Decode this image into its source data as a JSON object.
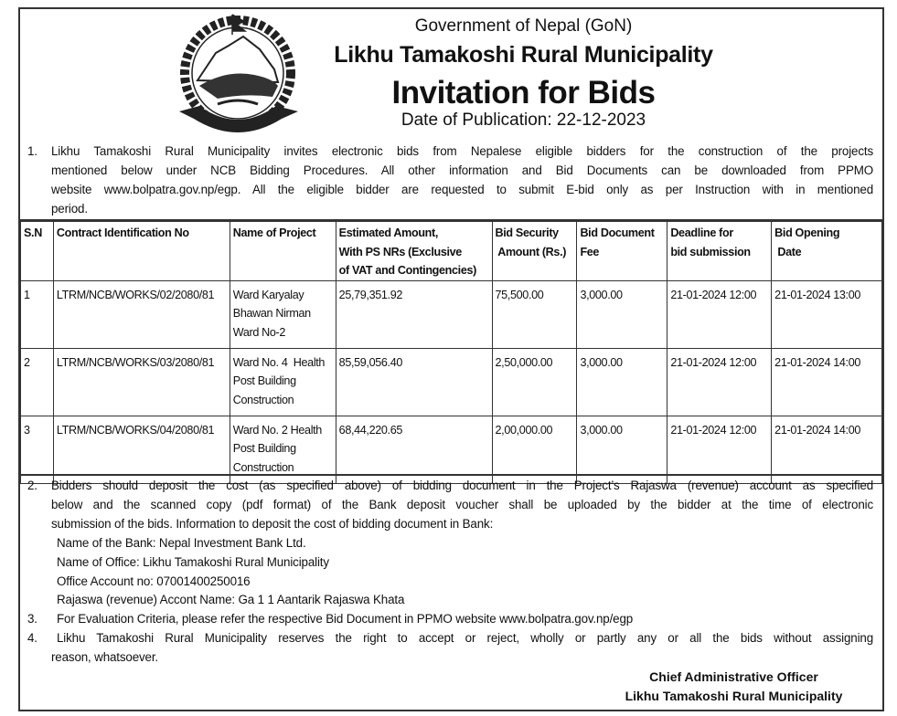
{
  "header": {
    "government": "Government of Nepal (GoN)",
    "municipality": "Likhu Tamakoshi Rural Municipality",
    "title": "Invitation for Bids",
    "publication_date": "Date of Publication: 22-12-2023",
    "emblem_icon": "nepal-government-emblem"
  },
  "section1": {
    "number": "1.",
    "lines": [
      "Likhu Tamakoshi Rural Municipality invites electronic bids from Nepalese eligible bidders for the construction of the projects",
      "mentioned below under NCB Bidding Procedures. All other information and Bid Documents can be downloaded from PPMO",
      "website www.bolpatra.gov.np/egp. All the eligible bidder are requested to submit E-bid only as per Instruction with in mentioned",
      "period."
    ]
  },
  "table": {
    "headers": [
      "S.N",
      "Contract Identification No",
      "Name of Project",
      "Estimated Amount, With PS NRs (Exclusive of VAT and Contingencies)",
      "Bid Security Amount (Rs.)",
      "Bid Document Fee",
      "Deadline for bid submission",
      "Bid Opening Date"
    ],
    "header_lines": [
      [
        "S.N"
      ],
      [
        "Contract Identification No"
      ],
      [
        "Name of Project"
      ],
      [
        "Estimated Amount,",
        "With PS NRs (Exclusive",
        "of VAT and Contingencies)"
      ],
      [
        "Bid Security",
        " Amount (Rs.)"
      ],
      [
        "Bid Document",
        "Fee"
      ],
      [
        "Deadline for",
        "bid submission"
      ],
      [
        "Bid Opening",
        " Date"
      ]
    ],
    "rows": [
      {
        "sn": "1",
        "contract_id": "LTRM/NCB/WORKS/02/2080/81",
        "project": [
          "Ward Karyalay",
          "Bhawan Nirman",
          "Ward No-2"
        ],
        "estimated_amount": "25,79,351.92",
        "bid_security": "75,500.00",
        "document_fee": "3,000.00",
        "deadline": "21-01-2024 12:00",
        "opening": "21-01-2024 13:00"
      },
      {
        "sn": "2",
        "contract_id": "LTRM/NCB/WORKS/03/2080/81",
        "project": [
          "Ward No. 4  Health",
          "Post Building",
          "Construction"
        ],
        "estimated_amount": "85,59,056.40",
        "bid_security": "2,50,000.00",
        "document_fee": "3,000.00",
        "deadline": "21-01-2024 12:00",
        "opening": "21-01-2024 14:00"
      },
      {
        "sn": "3",
        "contract_id": "LTRM/NCB/WORKS/04/2080/81",
        "project": [
          "Ward No. 2 Health",
          "Post Building",
          "Construction"
        ],
        "estimated_amount": "68,44,220.65",
        "bid_security": "2,00,000.00",
        "document_fee": "3,000.00",
        "deadline": "21-01-2024 12:00",
        "opening": "21-01-2024 14:00"
      }
    ]
  },
  "section2": {
    "number": "2.",
    "lines": [
      "Bidders should deposit the cost (as specified above) of bidding document in the Project’s Rajaswa (revenue) account as specified",
      "below and the scanned copy (pdf format) of the Bank deposit voucher shall be uploaded by the bidder at the time of electronic",
      "submission of the bids. Information to deposit the cost of bidding document in Bank:"
    ],
    "bank_name": "Name of the Bank: Nepal Investment Bank Ltd.",
    "office_name": "Name of Office: Likhu Tamakoshi Rural Municipality",
    "account_no": "Office Account no: 07001400250016",
    "revenue_account": "Rajaswa (revenue) Accont Name: Ga 1 1 Aantarik Rajaswa Khata"
  },
  "section3": {
    "number": "3.",
    "text": "For Evaluation Criteria, please refer the respective Bid Document in PPMO website www.bolpatra.gov.np/egp"
  },
  "section4": {
    "number": "4.",
    "lines": [
      "Likhu Tamakoshi Rural Municipality reserves the right to accept or reject, wholly or partly any or all the bids without assigning",
      "reason, whatsoever."
    ]
  },
  "signature": {
    "title": "Chief Administrative Officer",
    "office": "Likhu Tamakoshi Rural Municipality"
  }
}
